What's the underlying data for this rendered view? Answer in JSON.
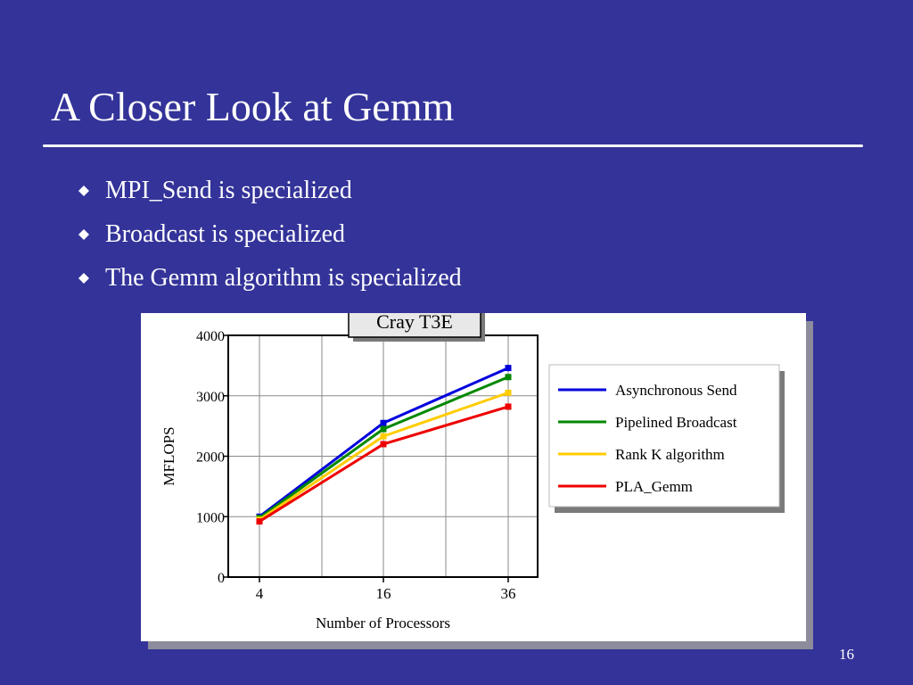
{
  "slide": {
    "title": "A Closer Look at Gemm",
    "bullets": [
      "MPI_Send is specialized",
      "Broadcast is specialized",
      "The Gemm algorithm is specialized"
    ],
    "page_number": "16"
  },
  "colors": {
    "background": "#333399",
    "text": "#ffffff",
    "series": [
      "#0000dd",
      "#008800",
      "#ffcc00",
      "#ee0000"
    ]
  },
  "chart_data": {
    "type": "line",
    "title": "Cray T3E",
    "xlabel": "Number of Processors",
    "ylabel": "MFLOPS",
    "x": [
      4,
      16,
      36
    ],
    "x_tick_labels": [
      "4",
      "16",
      "36"
    ],
    "y_ticks": [
      0,
      1000,
      2000,
      3000,
      4000
    ],
    "ylim": [
      0,
      4000
    ],
    "grid": true,
    "legend_position": "right",
    "series": [
      {
        "name": "Asynchronous Send",
        "values": [
          1000,
          2550,
          3460
        ]
      },
      {
        "name": "Pipelined Broadcast",
        "values": [
          980,
          2450,
          3310
        ]
      },
      {
        "name": "Rank K algorithm",
        "values": [
          950,
          2330,
          3050
        ]
      },
      {
        "name": "PLA_Gemm",
        "values": [
          920,
          2200,
          2820
        ]
      }
    ]
  }
}
